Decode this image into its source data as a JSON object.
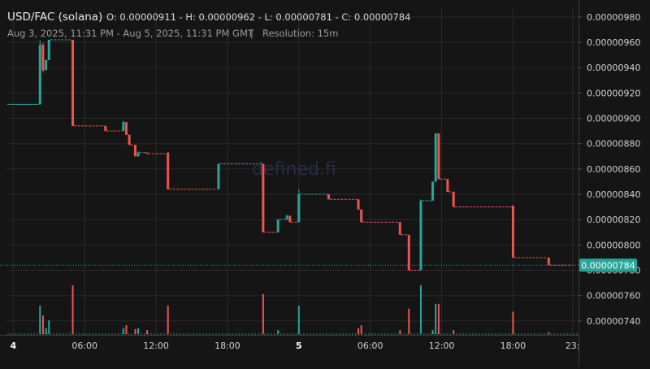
{
  "header": {
    "pair": "USD/FAC (solana)",
    "ohlc": "O: 0.00000911 - H: 0.00000962 - L: 0.00000781 - C: 0.00000784",
    "range": "Aug 3, 2025, 11:31 PM - Aug 5, 2025, 11:31 PM GMT",
    "separator": "|",
    "resolution": "Resolution: 15m"
  },
  "watermark": "defined.fi",
  "colors": {
    "up": "#26a69a",
    "down": "#ef5350",
    "price_tag": "#26a69a",
    "grid": "#2a2a2a"
  },
  "chart_data": {
    "type": "candlestick",
    "x_unit": "hours since Aug 4, 2025 00:00 GMT",
    "xlim": [
      -0.5,
      47.5
    ],
    "ylim": [
      7.29e-06,
      9.87e-06
    ],
    "y_ticks": [
      7.4e-06,
      7.6e-06,
      7.8e-06,
      8e-06,
      8.2e-06,
      8.4e-06,
      8.6e-06,
      8.8e-06,
      9e-06,
      9.2e-06,
      9.4e-06,
      9.6e-06,
      9.8e-06
    ],
    "y_tick_labels": [
      "0.00000740",
      "0.00000760",
      "0.00000780",
      "0.00000800",
      "0.00000820",
      "0.00000840",
      "0.00000860",
      "0.00000880",
      "0.00000900",
      "0.00000920",
      "0.00000940",
      "0.00000960",
      "0.00000980"
    ],
    "x_ticks": [
      0,
      6,
      12,
      18,
      24,
      30,
      36,
      42,
      47
    ],
    "x_tick_labels": [
      "4",
      "06:00",
      "12:00",
      "18:00",
      "5",
      "06:00",
      "12:00",
      "18:00",
      "23:"
    ],
    "x_tick_bold": [
      true,
      false,
      false,
      false,
      true,
      false,
      false,
      false,
      false
    ],
    "current_price": 7.84e-06,
    "current_price_label": "0.00000784",
    "candles": [
      {
        "t": 2.25,
        "o": 9.11e-06,
        "h": 9.62e-06,
        "l": 9.11e-06,
        "c": 9.58e-06
      },
      {
        "t": 2.5,
        "o": 9.58e-06,
        "h": 9.6e-06,
        "l": 9.36e-06,
        "c": 9.38e-06
      },
      {
        "t": 2.75,
        "o": 9.38e-06,
        "h": 9.46e-06,
        "l": 9.38e-06,
        "c": 9.46e-06
      },
      {
        "t": 3.0,
        "o": 9.46e-06,
        "h": 9.62e-06,
        "l": 9.46e-06,
        "c": 9.62e-06
      },
      {
        "t": 5.0,
        "o": 9.62e-06,
        "h": 9.62e-06,
        "l": 8.94e-06,
        "c": 8.94e-06
      },
      {
        "t": 7.75,
        "o": 8.94e-06,
        "h": 8.94e-06,
        "l": 8.9e-06,
        "c": 8.9e-06
      },
      {
        "t": 9.25,
        "o": 8.9e-06,
        "h": 8.98e-06,
        "l": 8.9e-06,
        "c": 8.97e-06
      },
      {
        "t": 9.5,
        "o": 8.97e-06,
        "h": 8.97e-06,
        "l": 8.87e-06,
        "c": 8.87e-06
      },
      {
        "t": 9.75,
        "o": 8.87e-06,
        "h": 8.87e-06,
        "l": 8.79e-06,
        "c": 8.79e-06
      },
      {
        "t": 10.25,
        "o": 8.79e-06,
        "h": 8.79e-06,
        "l": 8.7e-06,
        "c": 8.7e-06
      },
      {
        "t": 10.5,
        "o": 8.7e-06,
        "h": 8.74e-06,
        "l": 8.7e-06,
        "c": 8.73e-06
      },
      {
        "t": 11.25,
        "o": 8.73e-06,
        "h": 8.73e-06,
        "l": 8.72e-06,
        "c": 8.72e-06
      },
      {
        "t": 13.0,
        "o": 8.73e-06,
        "h": 8.73e-06,
        "l": 8.44e-06,
        "c": 8.44e-06
      },
      {
        "t": 17.25,
        "o": 8.44e-06,
        "h": 8.64e-06,
        "l": 8.44e-06,
        "c": 8.64e-06
      },
      {
        "t": 21.0,
        "o": 8.64e-06,
        "h": 8.64e-06,
        "l": 8.1e-06,
        "c": 8.1e-06
      },
      {
        "t": 22.25,
        "o": 8.1e-06,
        "h": 8.2e-06,
        "l": 8.1e-06,
        "c": 8.2e-06
      },
      {
        "t": 23.0,
        "o": 8.2e-06,
        "h": 8.24e-06,
        "l": 8.2e-06,
        "c": 8.23e-06
      },
      {
        "t": 23.25,
        "o": 8.23e-06,
        "h": 8.23e-06,
        "l": 8.18e-06,
        "c": 8.18e-06
      },
      {
        "t": 24.0,
        "o": 8.18e-06,
        "h": 8.44e-06,
        "l": 8.18e-06,
        "c": 8.4e-06
      },
      {
        "t": 26.5,
        "o": 8.4e-06,
        "h": 8.4e-06,
        "l": 8.36e-06,
        "c": 8.36e-06
      },
      {
        "t": 29.0,
        "o": 8.36e-06,
        "h": 8.36e-06,
        "l": 8.28e-06,
        "c": 8.28e-06
      },
      {
        "t": 29.25,
        "o": 8.28e-06,
        "h": 8.28e-06,
        "l": 8.18e-06,
        "c": 8.18e-06
      },
      {
        "t": 32.5,
        "o": 8.18e-06,
        "h": 8.18e-06,
        "l": 8.08e-06,
        "c": 8.08e-06
      },
      {
        "t": 33.25,
        "o": 8.08e-06,
        "h": 8.08e-06,
        "l": 7.8e-06,
        "c": 7.8e-06
      },
      {
        "t": 34.25,
        "o": 7.8e-06,
        "h": 8.36e-06,
        "l": 7.8e-06,
        "c": 8.35e-06
      },
      {
        "t": 35.25,
        "o": 8.35e-06,
        "h": 8.5e-06,
        "l": 8.35e-06,
        "c": 8.5e-06
      },
      {
        "t": 35.5,
        "o": 8.5e-06,
        "h": 8.88e-06,
        "l": 8.5e-06,
        "c": 8.88e-06
      },
      {
        "t": 35.75,
        "o": 8.88e-06,
        "h": 8.88e-06,
        "l": 8.52e-06,
        "c": 8.52e-06
      },
      {
        "t": 36.5,
        "o": 8.52e-06,
        "h": 8.52e-06,
        "l": 8.42e-06,
        "c": 8.42e-06
      },
      {
        "t": 37.0,
        "o": 8.42e-06,
        "h": 8.42e-06,
        "l": 8.3e-06,
        "c": 8.3e-06
      },
      {
        "t": 42.0,
        "o": 8.31e-06,
        "h": 8.31e-06,
        "l": 7.9e-06,
        "c": 7.9e-06
      },
      {
        "t": 45.0,
        "o": 7.9e-06,
        "h": 7.9e-06,
        "l": 7.84e-06,
        "c": 7.84e-06
      }
    ],
    "volume_ylim": [
      0,
      1
    ],
    "volumes": [
      {
        "t": 2.25,
        "v": 0.58,
        "up": true
      },
      {
        "t": 2.5,
        "v": 0.38,
        "up": false
      },
      {
        "t": 2.75,
        "v": 0.12,
        "up": true
      },
      {
        "t": 3.0,
        "v": 0.28,
        "up": true
      },
      {
        "t": 5.0,
        "v": 1.0,
        "up": false
      },
      {
        "t": 9.25,
        "v": 0.12,
        "up": true
      },
      {
        "t": 9.5,
        "v": 0.18,
        "up": false
      },
      {
        "t": 10.25,
        "v": 0.1,
        "up": false
      },
      {
        "t": 10.5,
        "v": 0.12,
        "up": true
      },
      {
        "t": 11.25,
        "v": 0.08,
        "up": false
      },
      {
        "t": 13.0,
        "v": 0.58,
        "up": false
      },
      {
        "t": 21.0,
        "v": 0.82,
        "up": false
      },
      {
        "t": 22.25,
        "v": 0.08,
        "up": true
      },
      {
        "t": 24.0,
        "v": 0.58,
        "up": true
      },
      {
        "t": 29.0,
        "v": 0.12,
        "up": false
      },
      {
        "t": 29.25,
        "v": 0.18,
        "up": false
      },
      {
        "t": 32.5,
        "v": 0.08,
        "up": false
      },
      {
        "t": 33.25,
        "v": 0.52,
        "up": false
      },
      {
        "t": 34.25,
        "v": 1.0,
        "up": true
      },
      {
        "t": 35.25,
        "v": 0.08,
        "up": true
      },
      {
        "t": 35.5,
        "v": 0.62,
        "up": true
      },
      {
        "t": 35.75,
        "v": 0.62,
        "up": false
      },
      {
        "t": 37.0,
        "v": 0.08,
        "up": false
      },
      {
        "t": 42.0,
        "v": 0.46,
        "up": false
      },
      {
        "t": 45.0,
        "v": 0.04,
        "up": false
      }
    ]
  }
}
